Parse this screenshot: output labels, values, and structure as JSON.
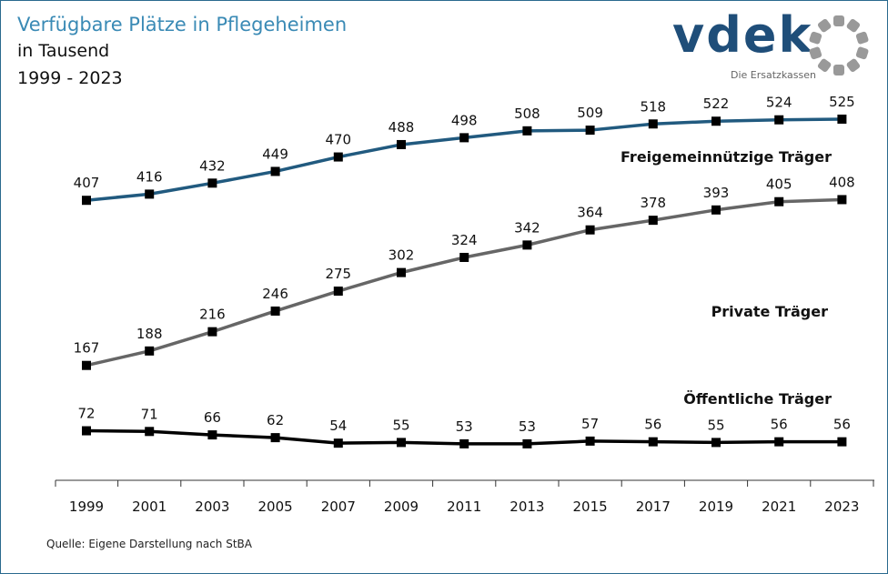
{
  "header": {
    "title": "Verfügbare Plätze in Pflegeheimen",
    "subtitle": "in Tausend",
    "period": "1999 - 2023"
  },
  "logo": {
    "text": "vdek",
    "tagline": "Die Ersatzkassen",
    "color": "#1f4e79",
    "ring_color": "#999999"
  },
  "source": "Quelle: Eigene Darstellung nach StBA",
  "chart_data": {
    "type": "line",
    "x": [
      "1999",
      "2001",
      "2003",
      "2005",
      "2007",
      "2009",
      "2011",
      "2013",
      "2015",
      "2017",
      "2019",
      "2021",
      "2023"
    ],
    "ylim": [
      0,
      640
    ],
    "grid": false,
    "marker": "square",
    "show_data_labels": true,
    "series": [
      {
        "name": "Freigemeinnützige Träger",
        "color": "#215a7f",
        "values": [
          407,
          416,
          432,
          449,
          470,
          488,
          498,
          508,
          509,
          518,
          522,
          524,
          525
        ]
      },
      {
        "name": "Private Träger",
        "color": "#666666",
        "values": [
          167,
          188,
          216,
          246,
          275,
          302,
          324,
          342,
          364,
          378,
          393,
          405,
          408
        ]
      },
      {
        "name": "Öffentliche Träger",
        "color": "#000000",
        "values": [
          72,
          71,
          66,
          62,
          54,
          55,
          53,
          53,
          57,
          56,
          55,
          56,
          56
        ]
      }
    ]
  }
}
